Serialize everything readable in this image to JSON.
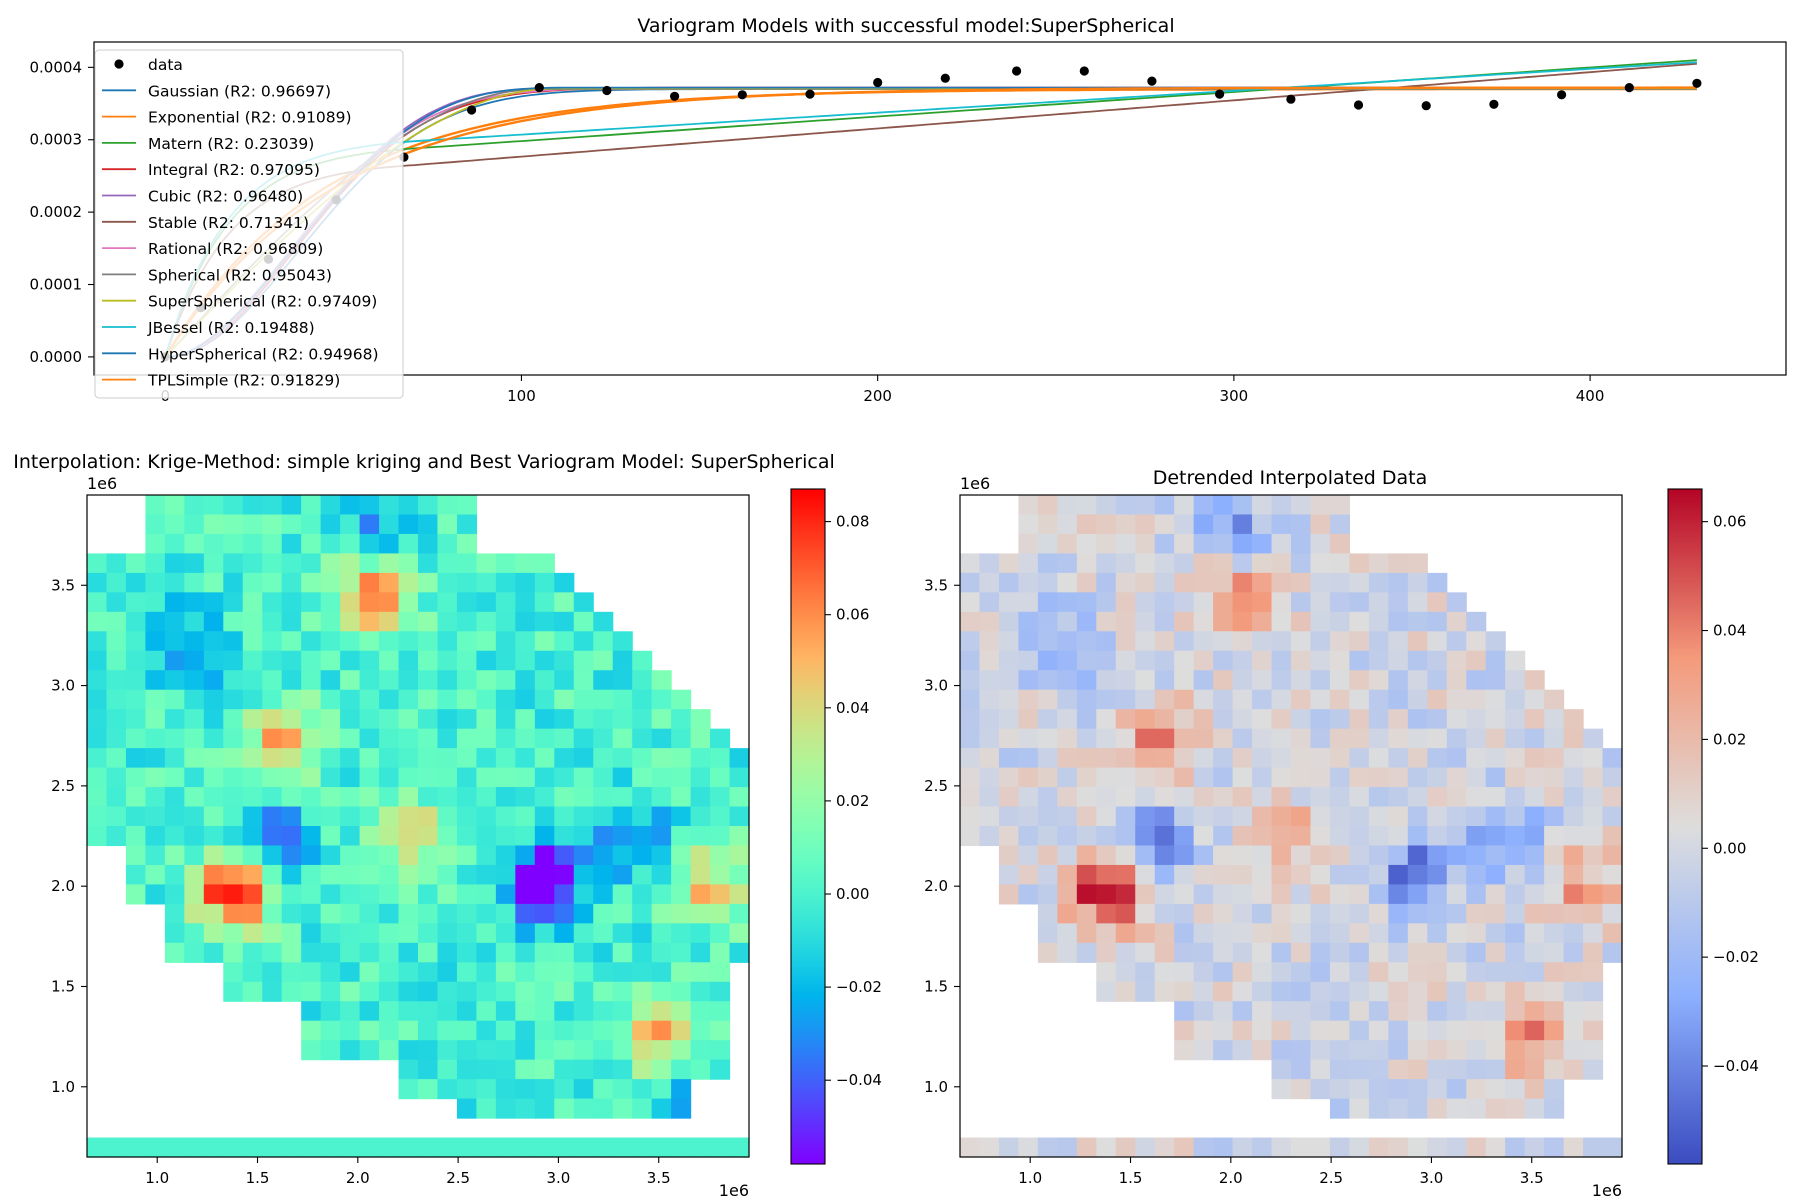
{
  "chart_data": [
    {
      "type": "scatter",
      "title": "Variogram Models with successful model:SuperSpherical",
      "xlabel": "",
      "ylabel": "",
      "xlim": [
        -20,
        455
      ],
      "ylim": [
        -2.5e-05,
        0.000435
      ],
      "xticks": [
        0,
        100,
        200,
        300,
        400
      ],
      "xtick_labels": [
        "0",
        "100",
        "200",
        "300",
        "400"
      ],
      "yticks": [
        0.0,
        0.0001,
        0.0002,
        0.0003,
        0.0004
      ],
      "ytick_labels": [
        "0.0000",
        "0.0001",
        "0.0002",
        "0.0003",
        "0.0004"
      ],
      "grid": false,
      "legend_position": "upper-left",
      "points": {
        "name": "data",
        "color": "#000000",
        "x": [
          0,
          10,
          29,
          48,
          67,
          86,
          105,
          124,
          143,
          162,
          181,
          200,
          219,
          239,
          258,
          277,
          296,
          316,
          335,
          354,
          373,
          392,
          411,
          430
        ],
        "y": [
          0.0,
          6.8e-05,
          0.000135,
          0.000217,
          0.000276,
          0.000341,
          0.000372,
          0.000368,
          0.00036,
          0.000362,
          0.000363,
          0.000379,
          0.000385,
          0.000395,
          0.000395,
          0.000381,
          0.000363,
          0.000356,
          0.000348,
          0.000347,
          0.000349,
          0.000362,
          0.000372,
          0.000378
        ]
      },
      "series": [
        {
          "name": "Gaussian (R2: 0.96697)",
          "color": "#1f77b4",
          "model": "gaussian",
          "sill": 0.00037,
          "range": 95,
          "nugget": 0.0
        },
        {
          "name": "Exponential (R2: 0.91089)",
          "color": "#ff7f0e",
          "model": "exponential",
          "sill": 0.00037,
          "range": 45,
          "nugget": 0.0
        },
        {
          "name": "Matern (R2: 0.23039)",
          "color": "#2ca02c",
          "model": "linear",
          "start": 0.000288,
          "end": 0.00041
        },
        {
          "name": "Integral (R2: 0.97095)",
          "color": "#d62728",
          "model": "gaussian",
          "sill": 0.000372,
          "range": 92,
          "nugget": 0.0
        },
        {
          "name": "Cubic (R2: 0.96480)",
          "color": "#9467bd",
          "model": "cubic",
          "sill": 0.000371,
          "range": 118,
          "nugget": 0.0
        },
        {
          "name": "Stable (R2: 0.71341)",
          "color": "#8c564b",
          "model": "linear",
          "start": 0.000265,
          "end": 0.000405
        },
        {
          "name": "Rational (R2: 0.96809)",
          "color": "#e377c2",
          "model": "gaussian",
          "sill": 0.000372,
          "range": 90,
          "nugget": 0.0
        },
        {
          "name": "Spherical (R2: 0.95043)",
          "color": "#7f7f7f",
          "model": "spherical",
          "sill": 0.00037,
          "range": 105,
          "nugget": 0.0
        },
        {
          "name": "SuperSpherical (R2: 0.97409)",
          "color": "#bcbd22",
          "model": "spherical",
          "sill": 0.000371,
          "range": 110,
          "nugget": 0.0
        },
        {
          "name": "JBessel (R2: 0.19488)",
          "color": "#17becf",
          "model": "linear",
          "start": 0.000298,
          "end": 0.000407
        },
        {
          "name": "HyperSpherical (R2: 0.94968)",
          "color": "#1f77b4",
          "model": "cubic",
          "sill": 0.000372,
          "range": 120,
          "nugget": 0.0
        },
        {
          "name": "TPLSimple (R2: 0.91829)",
          "color": "#ff7f0e",
          "model": "exponential",
          "sill": 0.000372,
          "range": 48,
          "nugget": 0.0
        }
      ],
      "x_step": 19.1
    },
    {
      "type": "heatmap",
      "title": "Interpolation: Krige-Method: simple kriging and Best Variogram Model: SuperSpherical",
      "colormap": "rainbow",
      "xlim": [
        0.65,
        3.95
      ],
      "ylim": [
        0.65,
        3.95
      ],
      "offset_label": "1e6",
      "xticks": [
        1.0,
        1.5,
        2.0,
        2.5,
        3.0,
        3.5
      ],
      "xtick_labels": [
        "1.0",
        "1.5",
        "2.0",
        "2.5",
        "3.0",
        "3.5"
      ],
      "yticks": [
        1.0,
        1.5,
        2.0,
        2.5,
        3.0,
        3.5
      ],
      "ytick_labels": [
        "1.0",
        "1.5",
        "2.0",
        "2.5",
        "3.0",
        "3.5"
      ],
      "colorbar": {
        "vmin": -0.058,
        "vmax": 0.087,
        "ticks": [
          -0.04,
          -0.02,
          0.0,
          0.02,
          0.04,
          0.06,
          0.08
        ],
        "tick_labels": [
          "−0.04",
          "−0.02",
          "0.00",
          "0.02",
          "0.04",
          "0.06",
          "0.08"
        ]
      },
      "grid_cells": [
        34,
        34
      ],
      "bottom_band_value": 0.0,
      "hotspots": [
        {
          "x": 1.38,
          "y": 1.97,
          "value": 0.085
        },
        {
          "x": 2.92,
          "y": 2.05,
          "value": -0.053
        },
        {
          "x": 1.63,
          "y": 2.72,
          "value": 0.058
        },
        {
          "x": 1.6,
          "y": 2.24,
          "value": -0.035
        },
        {
          "x": 1.15,
          "y": 3.18,
          "value": -0.038
        },
        {
          "x": 2.08,
          "y": 3.85,
          "value": -0.027
        },
        {
          "x": 2.08,
          "y": 3.45,
          "value": 0.06
        },
        {
          "x": 3.35,
          "y": 2.25,
          "value": -0.033
        },
        {
          "x": 2.95,
          "y": 1.95,
          "value": -0.03
        },
        {
          "x": 3.75,
          "y": 2.0,
          "value": 0.045
        },
        {
          "x": 3.5,
          "y": 1.25,
          "value": 0.05
        },
        {
          "x": 2.25,
          "y": 2.25,
          "value": 0.045
        },
        {
          "x": 3.6,
          "y": 0.95,
          "value": -0.02
        }
      ]
    },
    {
      "type": "heatmap",
      "title": "Detrended Interpolated Data",
      "colormap": "coolwarm",
      "xlim": [
        0.65,
        3.95
      ],
      "ylim": [
        0.65,
        3.95
      ],
      "offset_label": "1e6",
      "xticks": [
        1.0,
        1.5,
        2.0,
        2.5,
        3.0,
        3.5
      ],
      "xtick_labels": [
        "1.0",
        "1.5",
        "2.0",
        "2.5",
        "3.0",
        "3.5"
      ],
      "yticks": [
        1.0,
        1.5,
        2.0,
        2.5,
        3.0,
        3.5
      ],
      "ytick_labels": [
        "1.0",
        "1.5",
        "2.0",
        "2.5",
        "3.0",
        "3.5"
      ],
      "colorbar": {
        "vmin": -0.058,
        "vmax": 0.066,
        "ticks": [
          -0.04,
          -0.02,
          0.0,
          0.02,
          0.04,
          0.06
        ],
        "tick_labels": [
          "−0.04",
          "−0.02",
          "0.00",
          "0.02",
          "0.04",
          "0.06"
        ]
      },
      "grid_cells": [
        34,
        34
      ],
      "bottom_band_value": 0.0,
      "hotspots": [
        {
          "x": 1.38,
          "y": 1.97,
          "value": 0.065
        },
        {
          "x": 2.92,
          "y": 2.05,
          "value": -0.05
        },
        {
          "x": 1.65,
          "y": 2.72,
          "value": 0.045
        },
        {
          "x": 1.65,
          "y": 2.24,
          "value": -0.04
        },
        {
          "x": 1.15,
          "y": 3.18,
          "value": -0.035
        },
        {
          "x": 2.0,
          "y": 3.8,
          "value": -0.035
        },
        {
          "x": 2.05,
          "y": 3.45,
          "value": 0.035
        },
        {
          "x": 3.35,
          "y": 2.25,
          "value": -0.035
        },
        {
          "x": 3.75,
          "y": 2.0,
          "value": 0.03
        },
        {
          "x": 3.5,
          "y": 1.25,
          "value": 0.035
        },
        {
          "x": 2.25,
          "y": 2.25,
          "value": 0.03
        }
      ]
    }
  ]
}
